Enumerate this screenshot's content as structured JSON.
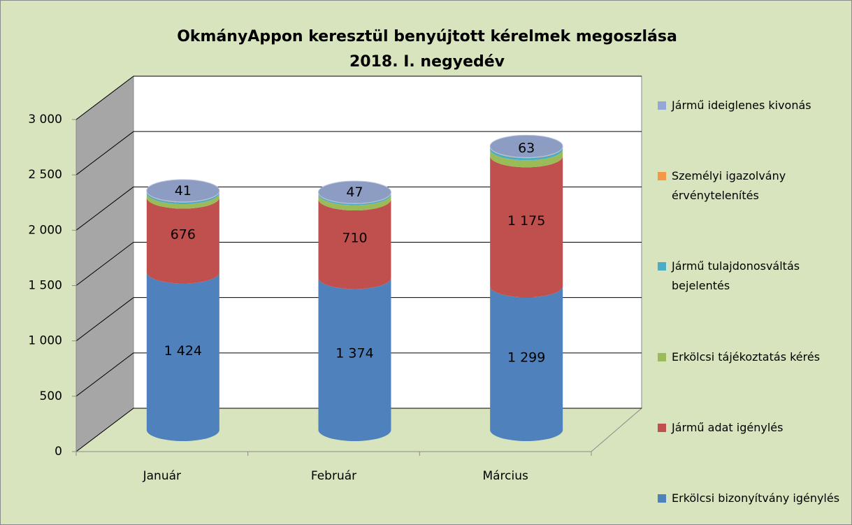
{
  "chart_data": {
    "type": "bar3d_stacked_cylinder",
    "title": "OkmányAppon keresztül benyújtott kérelmek megoszlása",
    "subtitle": "2018. I. negyedév",
    "categories": [
      "Január",
      "Február",
      "Március"
    ],
    "series": [
      {
        "name": "Erkölcsi bizonyítvány igénylés",
        "color": "#4f81bd",
        "values": [
          1424,
          1374,
          1299
        ],
        "value_labels": [
          "1 424",
          "1 374",
          "1 299"
        ]
      },
      {
        "name": "Jármű adat igénylés",
        "color": "#c0504d",
        "values": [
          676,
          710,
          1175
        ],
        "value_labels": [
          "676",
          "710",
          "1 175"
        ]
      },
      {
        "name": "Erkölcsi tájékoztatás kérés",
        "color": "#9bbb59",
        "values": [
          41,
          47,
          63
        ],
        "value_labels": [
          "41",
          "47",
          "63"
        ]
      },
      {
        "name": "Jármű tulajdonosváltás bejelentés",
        "color": "#4bacc6",
        "values": [
          15,
          12,
          20
        ]
      },
      {
        "name": "Személyi igazolvány érvénytelenítés",
        "color": "#f79646",
        "values": [
          3,
          2,
          3
        ]
      },
      {
        "name": "Jármű ideiglenes kivonás",
        "color": "#95a7d6",
        "values": [
          2,
          2,
          2
        ]
      }
    ],
    "ylim": [
      0,
      3000
    ],
    "yticks": [
      0,
      500,
      {
        "value": 1000,
        "label": "1 000"
      },
      {
        "value": 1500,
        "label": "1 500"
      },
      {
        "value": 2000,
        "label": "2 000"
      },
      {
        "value": 2500,
        "label": "2 500"
      },
      {
        "value": 3000,
        "label": "3 000"
      }
    ],
    "grid": true,
    "legend": "right"
  }
}
